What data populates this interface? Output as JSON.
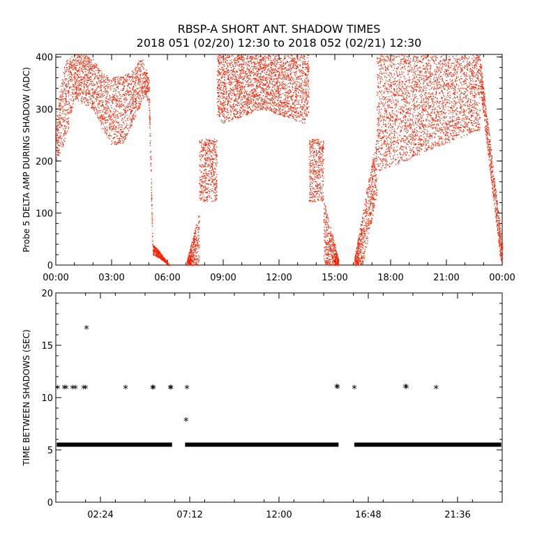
{
  "header": {
    "title_line1": "RBSP-A SHORT ANT. SHADOW TIMES",
    "title_line2": "2018 051 (02/20) 12:30 to 2018 052 (02/21) 12:30"
  },
  "chart_data": [
    {
      "type": "scatter",
      "name": "probe-amplitude",
      "ylabel": "Probe 5 DELTA AMP DURING SHADOW (ADC)",
      "xlabel": "",
      "xlim": [
        0,
        24
      ],
      "ylim": [
        0,
        405
      ],
      "xticks": [
        0,
        3,
        6,
        9,
        12,
        15,
        18,
        21,
        24
      ],
      "xtick_labels": [
        "00:00",
        "03:00",
        "06:00",
        "09:00",
        "12:00",
        "15:00",
        "18:00",
        "21:00",
        "00:00"
      ],
      "yticks": [
        0,
        100,
        200,
        300,
        400
      ],
      "ytick_labels": [
        "0",
        "100",
        "200",
        "300",
        "400"
      ],
      "point_color": "#ff2000",
      "upper_envelope": [
        [
          0,
          290
        ],
        [
          0.5,
          395
        ],
        [
          1,
          405
        ],
        [
          1.5,
          405
        ],
        [
          2,
          398
        ],
        [
          2.5,
          370
        ],
        [
          3,
          360
        ],
        [
          4,
          370
        ],
        [
          4.6,
          400
        ],
        [
          5.0,
          360
        ],
        [
          5.2,
          40
        ],
        [
          5.5,
          30
        ],
        [
          6.1,
          0
        ]
      ],
      "lower_envelope": [
        [
          0,
          200
        ],
        [
          0.5,
          240
        ],
        [
          1,
          320
        ],
        [
          2,
          300
        ],
        [
          2.5,
          260
        ],
        [
          3,
          230
        ],
        [
          3.6,
          235
        ],
        [
          4.2,
          280
        ],
        [
          4.8,
          330
        ],
        [
          5.0,
          300
        ],
        [
          5.2,
          20
        ],
        [
          5.5,
          15
        ],
        [
          6.1,
          0
        ]
      ],
      "segments": [
        {
          "t_start": 7.05,
          "t_end": 15.2,
          "shape": "arch",
          "peak": 405,
          "mid": 300
        },
        {
          "t_start": 16.05,
          "t_end": 24.0,
          "shape": "rise",
          "peak": 405,
          "mid": 310
        }
      ]
    },
    {
      "type": "scatter",
      "name": "time-between-shadows",
      "ylabel": "TIME BETWEEN SHADOWS (SEC)",
      "xlabel": "",
      "xlim": [
        0,
        24
      ],
      "ylim": [
        0,
        20
      ],
      "xticks": [
        2.4,
        7.2,
        12.0,
        16.8,
        21.6
      ],
      "xtick_labels": [
        "02:24",
        "07:12",
        "12:00",
        "16:48",
        "21:36"
      ],
      "yticks": [
        0,
        5,
        10,
        15,
        20
      ],
      "ytick_labels": [
        "0",
        "5",
        "10",
        "15",
        "20"
      ],
      "marker": "*",
      "baseline_value": 5.5,
      "baseline_ranges": [
        [
          0.05,
          6.25
        ],
        [
          6.95,
          15.2
        ],
        [
          16.05,
          23.95
        ]
      ],
      "points": [
        [
          0.1,
          10.9
        ],
        [
          0.45,
          10.9
        ],
        [
          0.55,
          10.9
        ],
        [
          0.9,
          10.9
        ],
        [
          1.05,
          10.9
        ],
        [
          1.5,
          10.9
        ],
        [
          1.6,
          10.9
        ],
        [
          1.65,
          16.6
        ],
        [
          3.75,
          10.9
        ],
        [
          5.2,
          10.9
        ],
        [
          5.25,
          10.9
        ],
        [
          6.15,
          10.9
        ],
        [
          6.2,
          10.9
        ],
        [
          7.05,
          10.9
        ],
        [
          7.0,
          7.8
        ],
        [
          15.1,
          11.0
        ],
        [
          15.15,
          10.95
        ],
        [
          16.05,
          10.9
        ],
        [
          18.8,
          11.0
        ],
        [
          18.85,
          10.95
        ],
        [
          20.45,
          10.9
        ]
      ]
    }
  ]
}
